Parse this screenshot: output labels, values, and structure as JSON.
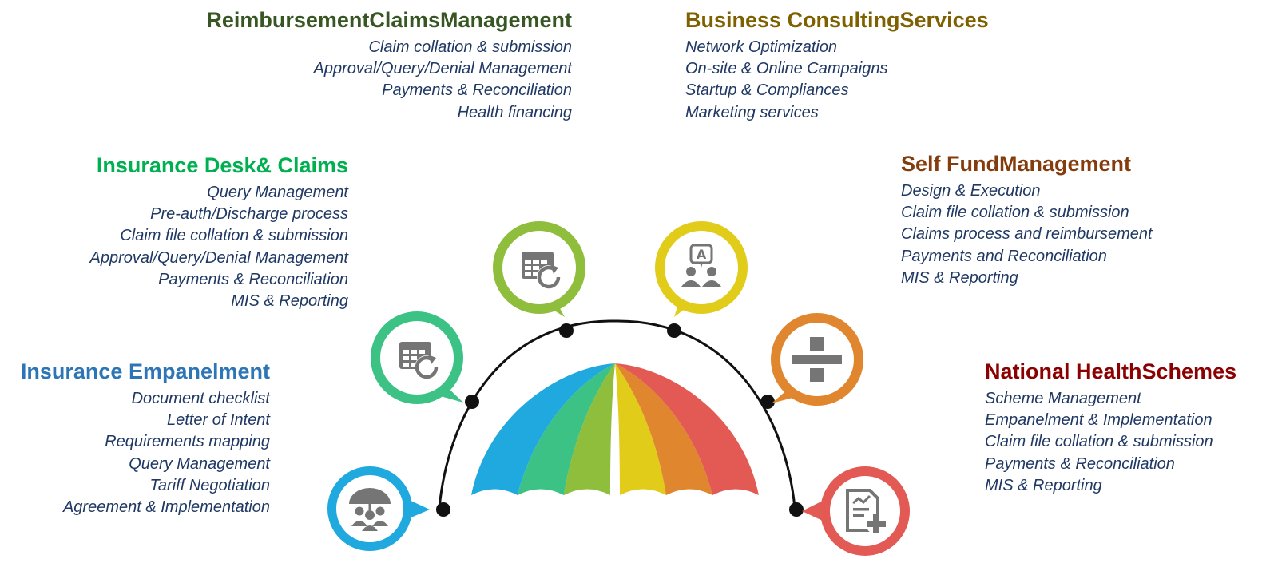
{
  "sections": {
    "reimbursement": {
      "title": "ReimbursementClaimsManagement",
      "color": "#375623",
      "items": [
        "Claim collation & submission",
        "Approval/Query/Denial Management",
        "Payments & Reconciliation",
        "Health financing"
      ]
    },
    "business": {
      "title": "Business ConsultingServices",
      "color": "#7f6000",
      "items": [
        "Network Optimization",
        "On-site & Online Campaigns",
        "Startup & Compliances",
        "Marketing services"
      ]
    },
    "insurance_desk": {
      "title": "Insurance Desk& Claims",
      "color": "#00b050",
      "items": [
        "Query Management",
        "Pre-auth/Discharge process",
        "Claim file collation & submission",
        "Approval/Query/Denial Management",
        "Payments & Reconciliation",
        "MIS & Reporting"
      ]
    },
    "self_fund": {
      "title": "Self FundManagement",
      "color": "#843c0c",
      "items": [
        "Design & Execution",
        "Claim file collation & submission",
        "Claims process and reimbursement",
        "Payments and Reconciliation",
        "MIS & Reporting"
      ]
    },
    "empanelment": {
      "title": "Insurance Empanelment",
      "color": "#2e75b6",
      "items": [
        "Document checklist",
        "Letter of Intent",
        "Requirements mapping",
        "Query Management",
        "Tariff Negotiation",
        "Agreement & Implementation"
      ]
    },
    "national": {
      "title": "National HealthSchemes",
      "color": "#8b0000",
      "items": [
        "Scheme Management",
        "Empanelment & Implementation",
        "Claim file collation & submission",
        "Payments & Reconciliation",
        "MIS & Reporting"
      ]
    }
  },
  "umbrella_colors": [
    "#1fa9de",
    "#3cc284",
    "#8fbd3c",
    "#e2cc1a",
    "#e0862e",
    "#e35a55"
  ],
  "bubbles": [
    {
      "id": "empanelment",
      "color": "#1fa9de",
      "icon": "insurance-people-icon"
    },
    {
      "id": "insurance-desk",
      "color": "#3cc284",
      "icon": "table-refresh-icon"
    },
    {
      "id": "reimbursement",
      "color": "#8fbd3c",
      "icon": "table-refresh-icon"
    },
    {
      "id": "business",
      "color": "#e2cc1a",
      "icon": "consulting-people-icon"
    },
    {
      "id": "self-fund",
      "color": "#e0862e",
      "icon": "divide-icon"
    },
    {
      "id": "national",
      "color": "#e35a55",
      "icon": "document-plus-icon"
    }
  ]
}
